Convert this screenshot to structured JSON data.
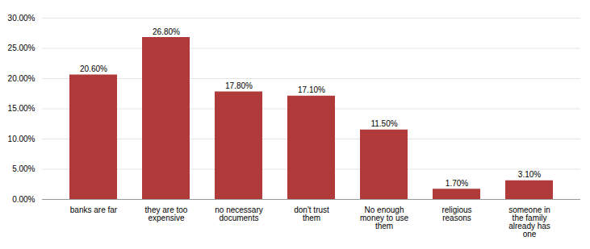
{
  "chart_data": {
    "type": "bar",
    "categories": [
      "banks are far",
      "they are too\nexpensive",
      "no necessary\ndocuments",
      "don't trust\nthem",
      "No enough\nmoney to use\nthem",
      "religious\nreasons",
      "someone in\nthe family\nalready has\none"
    ],
    "values": [
      20.6,
      26.8,
      17.8,
      17.1,
      11.5,
      1.7,
      3.1
    ],
    "value_labels": [
      "20.60%",
      "26.80%",
      "17.80%",
      "17.10%",
      "11.50%",
      "1.70%",
      "3.10%"
    ],
    "data_labels": true,
    "color": "#b03a3a",
    "ylim": [
      0,
      30
    ],
    "yticks": [
      {
        "value": 0,
        "label": "0.00%"
      },
      {
        "value": 5,
        "label": "5.00%"
      },
      {
        "value": 10,
        "label": "10.00%"
      },
      {
        "value": 15,
        "label": "15.00%"
      },
      {
        "value": 20,
        "label": "20.00%"
      },
      {
        "value": 25,
        "label": "25.00%"
      },
      {
        "value": 30,
        "label": "30.00%"
      }
    ],
    "grid": true
  }
}
